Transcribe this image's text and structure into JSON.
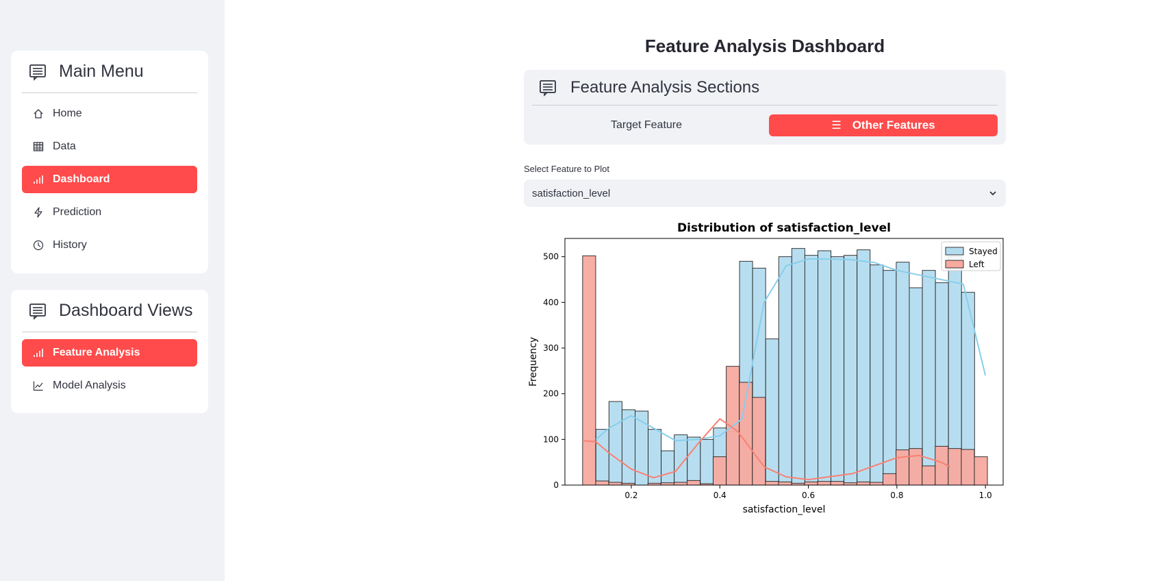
{
  "sidebar": {
    "main_menu": {
      "title": "Main Menu",
      "items": [
        {
          "label": "Home",
          "icon": "home-icon"
        },
        {
          "label": "Data",
          "icon": "table-icon"
        },
        {
          "label": "Dashboard",
          "icon": "bar-chart-icon",
          "active": true
        },
        {
          "label": "Prediction",
          "icon": "lightning-icon"
        },
        {
          "label": "History",
          "icon": "clock-icon"
        }
      ]
    },
    "dashboard_views": {
      "title": "Dashboard Views",
      "items": [
        {
          "label": "Feature Analysis",
          "icon": "bar-chart-icon",
          "active": true
        },
        {
          "label": "Model Analysis",
          "icon": "line-chart-icon"
        }
      ]
    }
  },
  "main": {
    "title": "Feature Analysis Dashboard",
    "sections": {
      "title": "Feature Analysis Sections",
      "tabs": [
        {
          "label": "Target Feature",
          "active": false
        },
        {
          "label": "Other Features",
          "active": true
        }
      ]
    },
    "select": {
      "label": "Select Feature to Plot",
      "value": "satisfaction_level"
    }
  },
  "colors": {
    "accent": "#ff4b4b",
    "sidebar_bg": "#f0f2f6",
    "stayed_fill": "#b3dcef",
    "stayed_line": "#87ceeb",
    "left_fill": "#f7aaa0",
    "left_line": "#fa8072"
  },
  "chart_data": {
    "type": "bar",
    "title": "Distribution of satisfaction_level",
    "xlabel": "satisfaction_level",
    "ylabel": "Frequency",
    "xlim": [
      0.05,
      1.04
    ],
    "ylim": [
      0,
      540
    ],
    "xticks": [
      "0.2",
      "0.4",
      "0.6",
      "0.8",
      "1.0"
    ],
    "yticks": [
      "0",
      "100",
      "200",
      "300",
      "400",
      "500"
    ],
    "legend_position": "top-right",
    "series": [
      {
        "name": "Stayed",
        "bin_start": 0.12,
        "bin_width": 0.0295,
        "values": [
          122,
          183,
          165,
          162,
          122,
          75,
          110,
          105,
          100,
          125,
          118,
          490,
          475,
          320,
          500,
          518,
          503,
          513,
          500,
          503,
          515,
          482,
          470,
          488,
          432,
          470,
          443,
          500,
          422
        ],
        "kde": [
          [
            0.12,
            100
          ],
          [
            0.15,
            125
          ],
          [
            0.2,
            152
          ],
          [
            0.25,
            125
          ],
          [
            0.3,
            97
          ],
          [
            0.35,
            100
          ],
          [
            0.4,
            108
          ],
          [
            0.45,
            145
          ],
          [
            0.5,
            400
          ],
          [
            0.55,
            480
          ],
          [
            0.6,
            495
          ],
          [
            0.65,
            495
          ],
          [
            0.7,
            493
          ],
          [
            0.75,
            487
          ],
          [
            0.8,
            470
          ],
          [
            0.85,
            460
          ],
          [
            0.9,
            450
          ],
          [
            0.95,
            440
          ],
          [
            1.0,
            240
          ]
        ]
      },
      {
        "name": "Left",
        "bin_start": 0.09,
        "bin_width": 0.0295,
        "values": [
          502,
          9,
          6,
          4,
          0,
          4,
          5,
          6,
          10,
          3,
          62,
          260,
          225,
          192,
          8,
          7,
          4,
          7,
          8,
          8,
          5,
          7,
          6,
          25,
          77,
          80,
          42,
          85,
          80,
          78,
          62
        ],
        "kde": [
          [
            0.09,
            97
          ],
          [
            0.12,
            95
          ],
          [
            0.15,
            70
          ],
          [
            0.2,
            35
          ],
          [
            0.25,
            16
          ],
          [
            0.3,
            30
          ],
          [
            0.35,
            90
          ],
          [
            0.4,
            145
          ],
          [
            0.44,
            118
          ],
          [
            0.5,
            40
          ],
          [
            0.55,
            18
          ],
          [
            0.6,
            12
          ],
          [
            0.7,
            25
          ],
          [
            0.8,
            60
          ],
          [
            0.85,
            65
          ],
          [
            0.9,
            50
          ],
          [
            0.92,
            40
          ]
        ]
      }
    ]
  }
}
